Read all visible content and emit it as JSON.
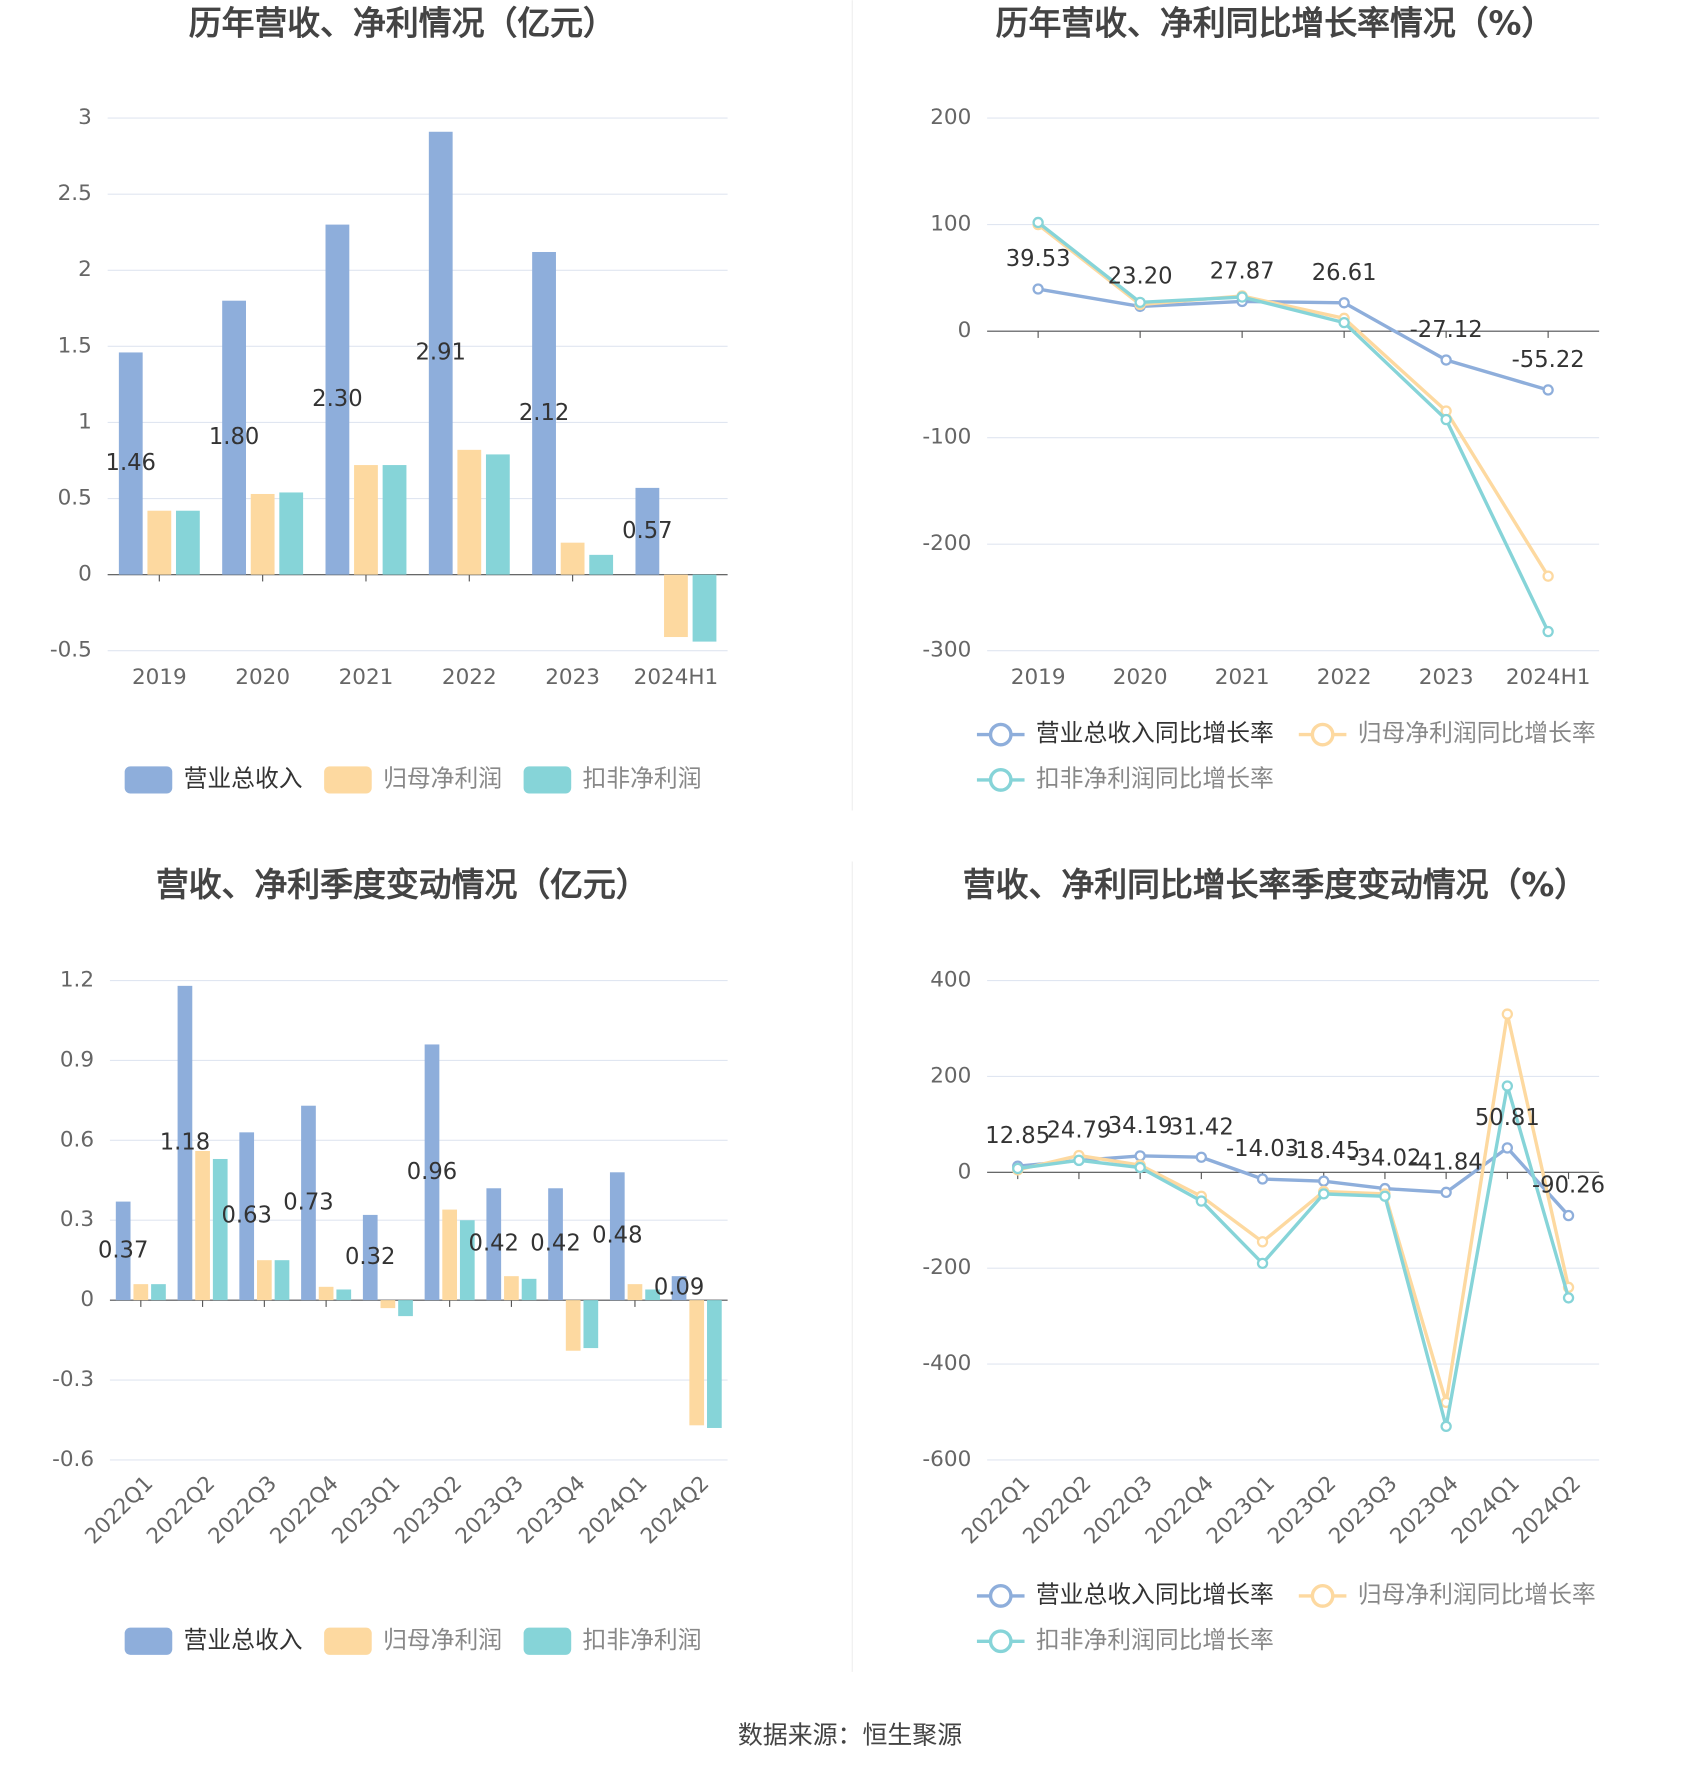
{
  "chart_data": [
    {
      "type": "bar",
      "title": "历年营收、净利情况（亿元）",
      "categories": [
        "2019",
        "2020",
        "2021",
        "2022",
        "2023",
        "2024H1"
      ],
      "series": [
        {
          "name": "营业总收入",
          "color": "#8eaedb",
          "values": [
            1.46,
            1.8,
            2.3,
            2.91,
            2.12,
            0.57
          ],
          "value_labels": [
            "1.46",
            "1.80",
            "2.30",
            "2.91",
            "2.12",
            "0.57"
          ]
        },
        {
          "name": "归母净利润",
          "color": "#fdd9a0",
          "values": [
            0.42,
            0.53,
            0.72,
            0.82,
            0.21,
            -0.41
          ]
        },
        {
          "name": "扣非净利润",
          "color": "#86d4d8",
          "values": [
            0.42,
            0.54,
            0.72,
            0.79,
            0.13,
            -0.44
          ]
        }
      ],
      "ylim": [
        -0.5,
        3
      ],
      "yticks": [
        -0.5,
        0,
        0.5,
        1,
        1.5,
        2,
        2.5,
        3
      ],
      "grid": true
    },
    {
      "type": "line",
      "title": "历年营收、净利同比增长率情况（%）",
      "categories": [
        "2019",
        "2020",
        "2021",
        "2022",
        "2023",
        "2024H1"
      ],
      "series": [
        {
          "name": "营业总收入同比增长率",
          "color": "#8eaedb",
          "values": [
            39.53,
            23.2,
            27.87,
            26.61,
            -27.12,
            -55.22
          ],
          "value_labels": [
            "39.53",
            "23.20",
            "27.87",
            "26.61",
            "-27.12",
            "-55.22"
          ]
        },
        {
          "name": "归母净利润同比增长率",
          "color": "#fdd9a0",
          "values": [
            100,
            25,
            33,
            12,
            -75,
            -230
          ]
        },
        {
          "name": "扣非净利润同比增长率",
          "color": "#86d4d8",
          "values": [
            102,
            27,
            32,
            8,
            -83,
            -282
          ]
        }
      ],
      "ylim": [
        -300,
        200
      ],
      "yticks": [
        -300,
        -200,
        -100,
        0,
        100,
        200
      ],
      "grid": true
    },
    {
      "type": "bar",
      "title": "营收、净利季度变动情况（亿元）",
      "categories": [
        "2022Q1",
        "2022Q2",
        "2022Q3",
        "2022Q4",
        "2023Q1",
        "2023Q2",
        "2023Q3",
        "2023Q4",
        "2024Q1",
        "2024Q2"
      ],
      "series": [
        {
          "name": "营业总收入",
          "color": "#8eaedb",
          "values": [
            0.37,
            1.18,
            0.63,
            0.73,
            0.32,
            0.96,
            0.42,
            0.42,
            0.48,
            0.09
          ]
        },
        {
          "name": "归母净利润",
          "color": "#fdd9a0",
          "values": [
            0.06,
            0.56,
            0.15,
            0.05,
            -0.03,
            0.34,
            0.09,
            -0.19,
            0.06,
            -0.47
          ]
        },
        {
          "name": "扣非净利润",
          "color": "#86d4d8",
          "values": [
            0.06,
            0.53,
            0.15,
            0.04,
            -0.06,
            0.3,
            0.08,
            -0.18,
            0.04,
            -0.48
          ]
        }
      ],
      "ylim": [
        -0.6,
        1.2
      ],
      "yticks": [
        -0.6,
        -0.3,
        0,
        0.3,
        0.6,
        0.9,
        1.2
      ],
      "grid": true
    },
    {
      "type": "line",
      "title": "营收、净利同比增长率季度变动情况（%）",
      "categories": [
        "2022Q1",
        "2022Q2",
        "2022Q3",
        "2022Q4",
        "2023Q1",
        "2023Q2",
        "2023Q3",
        "2023Q4",
        "2024Q1",
        "2024Q2"
      ],
      "series": [
        {
          "name": "营业总收入同比增长率",
          "color": "#8eaedb",
          "values": [
            12.85,
            24.79,
            34.19,
            31.42,
            -14.03,
            -18.45,
            -34.02,
            -41.84,
            50.81,
            -90.26
          ]
        },
        {
          "name": "归母净利润同比增长率",
          "color": "#fdd9a0",
          "values": [
            5,
            35,
            15,
            -50,
            -145,
            -40,
            -45,
            -480,
            330,
            -240
          ]
        },
        {
          "name": "扣非净利润同比增长率",
          "color": "#86d4d8",
          "values": [
            8,
            25,
            10,
            -60,
            -190,
            -45,
            -50,
            -530,
            180,
            -262
          ]
        }
      ],
      "ylim": [
        -600,
        400
      ],
      "yticks": [
        -600,
        -400,
        -200,
        0,
        200,
        400
      ],
      "grid": true
    }
  ],
  "source": "数据来源：恒生聚源"
}
